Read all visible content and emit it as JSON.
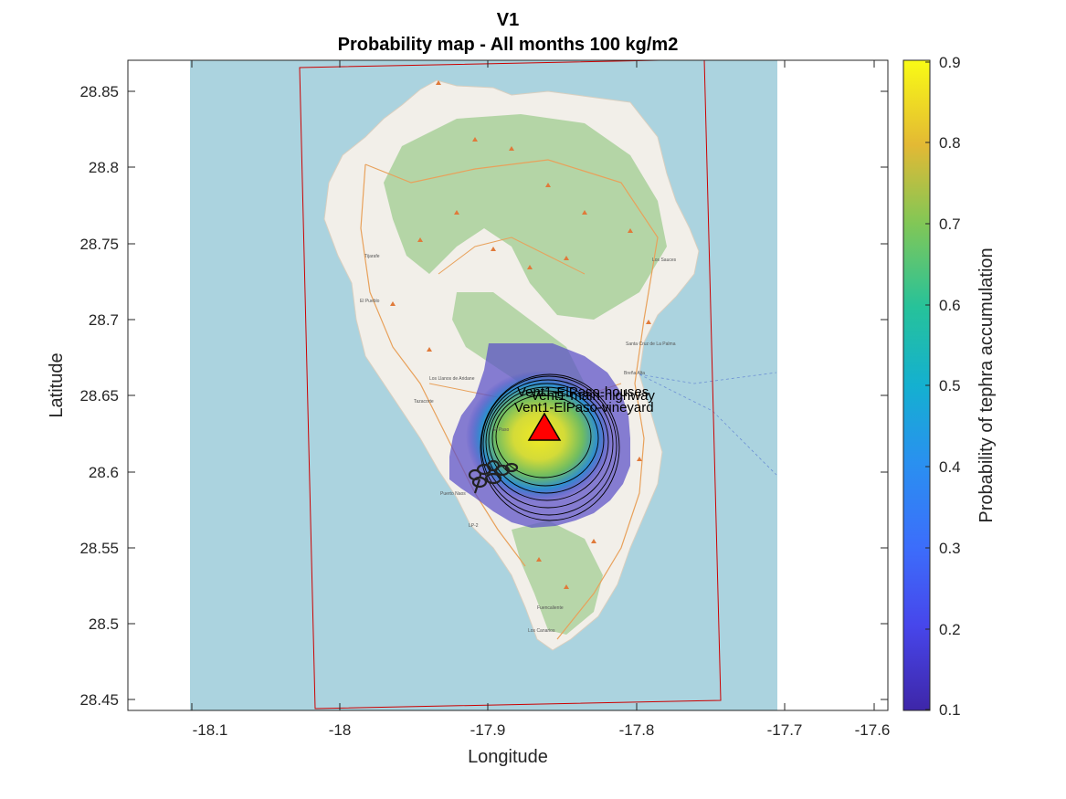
{
  "figure": {
    "title_line1": "V1",
    "title_line2": "Probability map - All months 100 kg/m2"
  },
  "axes": {
    "xlabel": "Longitude",
    "ylabel": "Latitude",
    "xticks": [
      "-18.1",
      "-18",
      "-17.9",
      "-17.8",
      "-17.7",
      "-17.6"
    ],
    "yticks": [
      "28.85",
      "28.8",
      "28.75",
      "28.7",
      "28.65",
      "28.6",
      "28.55",
      "28.5",
      "28.45"
    ]
  },
  "colorbar": {
    "label": "Probability of tephra accumulation",
    "ticks": [
      "0.9",
      "0.8",
      "0.7",
      "0.6",
      "0.5",
      "0.4",
      "0.3",
      "0.2",
      "0.1"
    ],
    "range": [
      0.1,
      0.9
    ]
  },
  "vent": {
    "lon": -17.841,
    "lat": 28.627,
    "color": "#ff0000"
  },
  "point_labels": [
    {
      "text": "Vent1-ElPaso-houses"
    },
    {
      "text": "Vent1-main-highway"
    },
    {
      "text": "Vent1-ElPaso-vineyard"
    }
  ],
  "map_places": [
    "Santa Cruz de La Palma",
    "Los Llanos de Aridane",
    "El Paso",
    "Tazacorte",
    "Puerto Naos",
    "Los Canarios",
    "Breña Alta",
    "El Pueblo",
    "Los Sauces",
    "Tijarafe",
    "Fuencaliente",
    "LP-2"
  ],
  "colors": {
    "sea": "#abd3df",
    "land": "#f2efe9",
    "forest": "#add19e",
    "domain_box": "#cc0000",
    "contour": "#000000"
  }
}
